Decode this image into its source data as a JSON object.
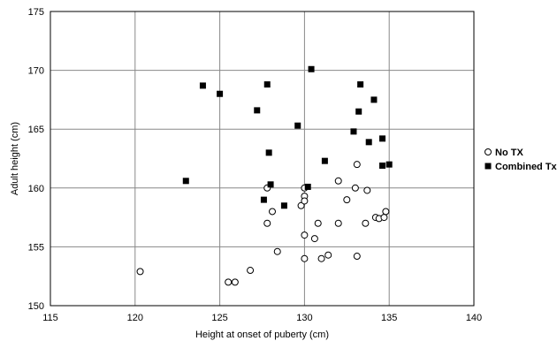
{
  "chart_data": {
    "type": "scatter",
    "xlabel": "Height at onset of puberty (cm)",
    "ylabel": "Adult height (cm)",
    "xlim": [
      115,
      140
    ],
    "ylim": [
      150,
      175
    ],
    "x_ticks": [
      115,
      120,
      125,
      130,
      135,
      140
    ],
    "y_ticks": [
      150,
      155,
      160,
      165,
      170,
      175
    ],
    "grid": true,
    "legend_position": "right",
    "series": [
      {
        "name": "No TX",
        "marker": "open-circle",
        "color": "#000000",
        "points": [
          [
            120.3,
            152.9
          ],
          [
            125.5,
            152.0
          ],
          [
            125.9,
            152.0
          ],
          [
            126.8,
            153.0
          ],
          [
            127.8,
            160.0
          ],
          [
            127.8,
            157.0
          ],
          [
            128.1,
            158.0
          ],
          [
            128.4,
            154.6
          ],
          [
            129.8,
            158.5
          ],
          [
            130.0,
            159.3
          ],
          [
            130.0,
            158.9
          ],
          [
            130.0,
            160.0
          ],
          [
            130.0,
            156.0
          ],
          [
            130.0,
            154.0
          ],
          [
            130.6,
            155.7
          ],
          [
            130.8,
            157.0
          ],
          [
            131.0,
            154.0
          ],
          [
            131.4,
            154.3
          ],
          [
            132.0,
            160.6
          ],
          [
            132.0,
            157.0
          ],
          [
            132.5,
            159.0
          ],
          [
            133.0,
            160.0
          ],
          [
            133.1,
            162.0
          ],
          [
            133.1,
            154.2
          ],
          [
            133.6,
            157.0
          ],
          [
            133.7,
            159.8
          ],
          [
            134.2,
            157.5
          ],
          [
            134.4,
            157.4
          ],
          [
            134.7,
            157.5
          ],
          [
            134.8,
            158.0
          ]
        ]
      },
      {
        "name": "Combined Tx",
        "marker": "filled-square",
        "color": "#000000",
        "points": [
          [
            123.0,
            160.6
          ],
          [
            124.0,
            168.7
          ],
          [
            125.0,
            168.0
          ],
          [
            127.2,
            166.6
          ],
          [
            127.6,
            159.0
          ],
          [
            127.8,
            168.8
          ],
          [
            127.9,
            163.0
          ],
          [
            128.0,
            160.3
          ],
          [
            128.8,
            158.5
          ],
          [
            129.6,
            165.3
          ],
          [
            130.2,
            160.1
          ],
          [
            130.4,
            170.1
          ],
          [
            131.2,
            162.3
          ],
          [
            132.9,
            164.8
          ],
          [
            133.2,
            166.5
          ],
          [
            133.3,
            168.8
          ],
          [
            133.8,
            163.9
          ],
          [
            134.1,
            167.5
          ],
          [
            134.6,
            164.2
          ],
          [
            134.6,
            161.9
          ],
          [
            135.0,
            162.0
          ]
        ]
      }
    ]
  }
}
